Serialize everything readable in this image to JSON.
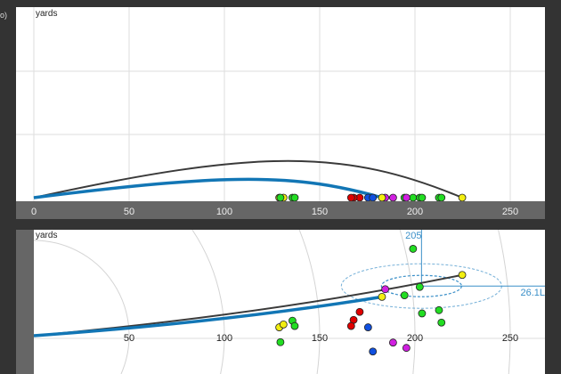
{
  "left_fragment": "o)",
  "side_view": {
    "unit_label": "yards",
    "x_ticks": [
      "0",
      "50",
      "100",
      "150",
      "200",
      "250"
    ]
  },
  "top_view": {
    "unit_label": "yards",
    "x_ticks": [
      "50",
      "100",
      "150",
      "200",
      "250"
    ]
  },
  "target": {
    "distance_label": "205",
    "lateral_label": "26.1L",
    "carry": 202.5,
    "lateral": 25.6
  },
  "colors": {
    "blue_trajectory": "#1276b5",
    "black_trajectory": "#3a3a3a",
    "green": "#22dd22",
    "yellow": "#f2ee10",
    "red": "#e00000",
    "blue": "#1050e0",
    "purple": "#d020e0",
    "target": "#3a8fc8"
  },
  "chart_data": {
    "type": "scatter",
    "xlabel": "yards",
    "ylabel": "yards",
    "x_ticks": [
      0,
      50,
      100,
      150,
      200,
      250
    ],
    "xlim": [
      0,
      268
    ],
    "grid": true,
    "trajectories": [
      {
        "color": "black",
        "carry": 224.8,
        "lateral": 31.9
      },
      {
        "color": "blue",
        "carry": 182.7,
        "lateral": 20.4
      }
    ],
    "shots": [
      {
        "color": "green",
        "carry": 199,
        "lateral": 45.6
      },
      {
        "color": "yellow",
        "carry": 224.8,
        "lateral": 31.9
      },
      {
        "color": "purple",
        "carry": 184.4,
        "lateral": 24.4
      },
      {
        "color": "green",
        "carry": 202.5,
        "lateral": 25.6
      },
      {
        "color": "yellow",
        "carry": 182.7,
        "lateral": 20.4
      },
      {
        "color": "green",
        "carry": 194.5,
        "lateral": 21.2
      },
      {
        "color": "red",
        "carry": 171,
        "lateral": 12.5
      },
      {
        "color": "red",
        "carry": 167.8,
        "lateral": 8.3
      },
      {
        "color": "red",
        "carry": 166.5,
        "lateral": 5.1
      },
      {
        "color": "blue",
        "carry": 175.4,
        "lateral": 4.4
      },
      {
        "color": "green",
        "carry": 203.7,
        "lateral": 11.7
      },
      {
        "color": "green",
        "carry": 212.6,
        "lateral": 13.4
      },
      {
        "color": "green",
        "carry": 213.9,
        "lateral": 6.9
      },
      {
        "color": "yellow",
        "carry": 128.8,
        "lateral": 4.4
      },
      {
        "color": "yellow",
        "carry": 131,
        "lateral": 5.9
      },
      {
        "color": "green",
        "carry": 135.7,
        "lateral": 7.9
      },
      {
        "color": "green",
        "carry": 136.9,
        "lateral": 5.1
      },
      {
        "color": "green",
        "carry": 129.4,
        "lateral": -3.4
      },
      {
        "color": "purple",
        "carry": 188.5,
        "lateral": -3.6
      },
      {
        "color": "purple",
        "carry": 195.5,
        "lateral": -6.4
      },
      {
        "color": "blue",
        "carry": 177.9,
        "lateral": -8.3
      }
    ]
  }
}
